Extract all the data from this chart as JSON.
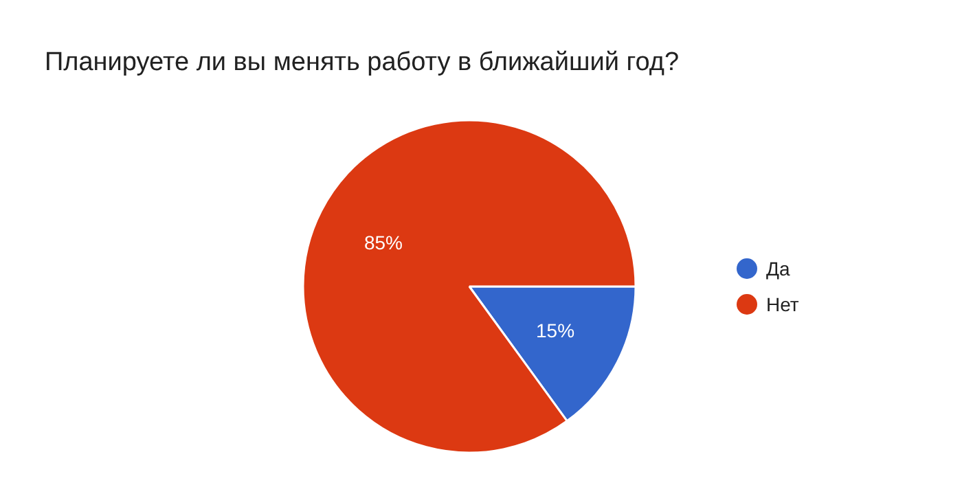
{
  "chart_data": {
    "type": "pie",
    "title": "Планируете ли вы менять работу в ближайший год?",
    "categories": [
      "Да",
      "Нет"
    ],
    "values": [
      15,
      85
    ],
    "colors": [
      "#3366cc",
      "#dc3912"
    ],
    "value_labels": [
      "15%",
      "85%"
    ],
    "legend": "right"
  }
}
